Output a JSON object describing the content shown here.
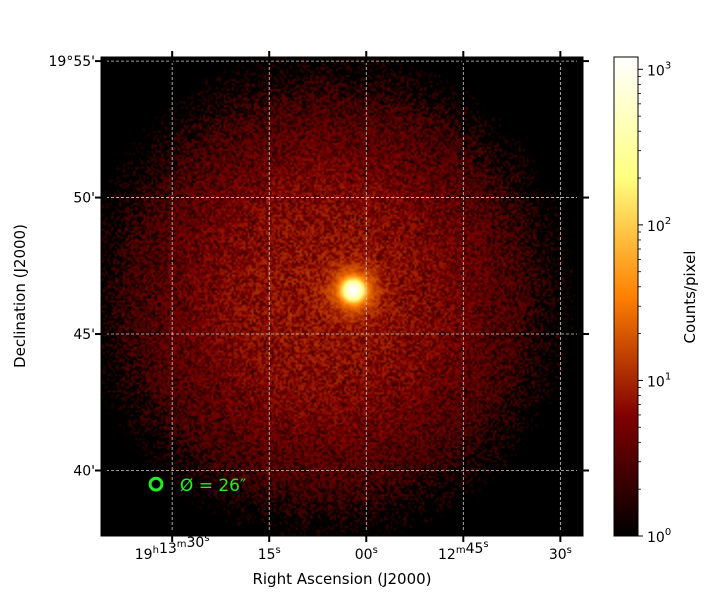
{
  "chart_data": {
    "type": "heatmap",
    "title": "",
    "xlabel": "Right Ascension (J2000)",
    "ylabel": "Declination (J2000)",
    "x_ticks": [
      {
        "ra_sec": 30,
        "hours": "19",
        "minutes": "13",
        "seconds": "30"
      },
      {
        "ra_sec": 15,
        "hours": "",
        "minutes": "",
        "seconds": "15"
      },
      {
        "ra_sec": 0,
        "hours": "",
        "minutes": "",
        "seconds": "00"
      },
      {
        "ra_sec": -15,
        "hours": "",
        "minutes": "12",
        "seconds": "45"
      },
      {
        "ra_sec": -30,
        "hours": "",
        "minutes": "",
        "seconds": "30"
      }
    ],
    "y_ticks": [
      {
        "dec_arcmin": 55,
        "label": "19°55'"
      },
      {
        "dec_arcmin": 50,
        "label": "50'"
      },
      {
        "dec_arcmin": 45,
        "label": "45'"
      },
      {
        "dec_arcmin": 40,
        "label": "40'"
      }
    ],
    "x_range_ra_sec": [
      41,
      -33.5
    ],
    "y_range_dec_arcmin": [
      37.6,
      55.15
    ],
    "grid": true,
    "source": {
      "ra_sec": 2.0,
      "dec_arcmin": 46.6,
      "peak_counts": 1200
    },
    "background_counts_center": 8,
    "field_radius_arcmin": 8.4,
    "beam": {
      "ra_sec": 32.5,
      "dec_arcmin": 39.5,
      "diameter_arcsec": 26,
      "label": "Ø = 26″",
      "color": "#22ee22"
    },
    "colorbar": {
      "label": "Counts/pixel",
      "scale": "log",
      "range": [
        1,
        1200
      ],
      "ticks": [
        {
          "value": 1,
          "mantissa": "10",
          "exponent": "0"
        },
        {
          "value": 10,
          "mantissa": "10",
          "exponent": "1"
        },
        {
          "value": 100,
          "mantissa": "10",
          "exponent": "2"
        },
        {
          "value": 1000,
          "mantissa": "10",
          "exponent": "3"
        }
      ],
      "colormap": "afmhot"
    }
  }
}
